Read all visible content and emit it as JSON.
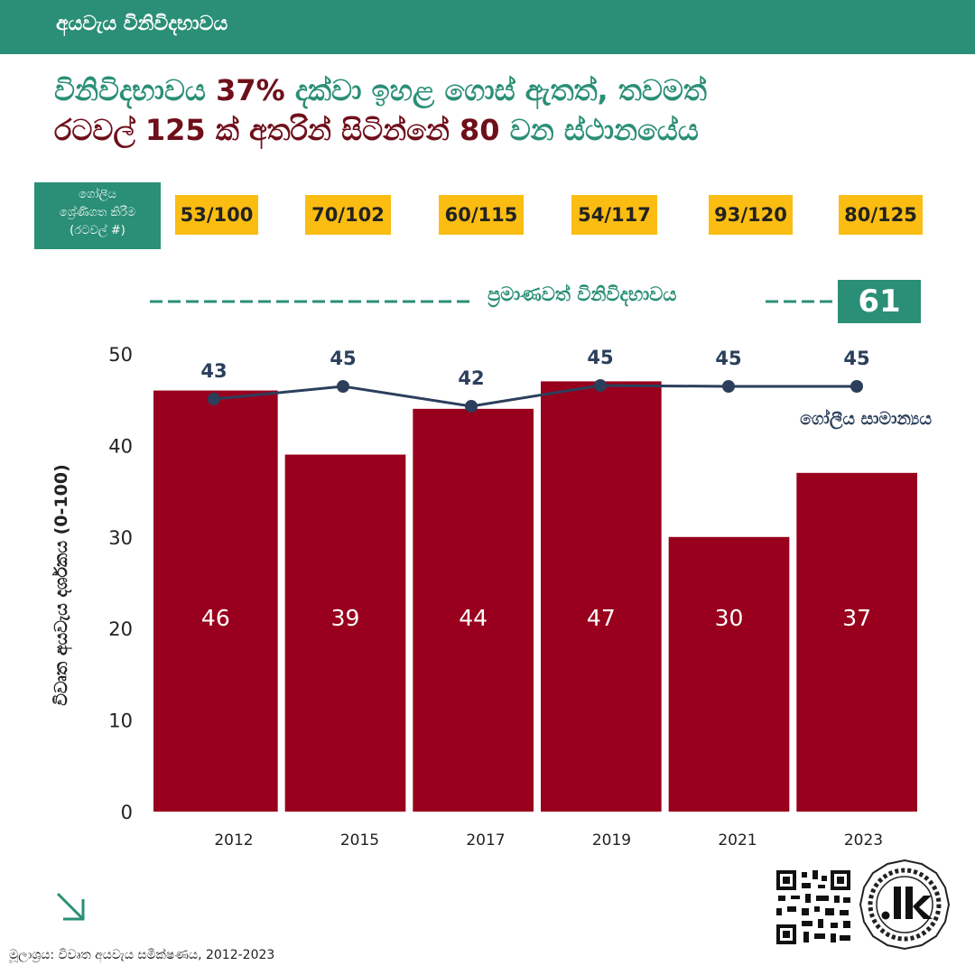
{
  "header": {
    "title": "අයවැය විනිවිදභාවය"
  },
  "headline": {
    "line1_a": "විනිවිදභාවය ",
    "line1_b": "37%",
    "line1_c": " දක්වා ඉහළ ගොස් ඇතත්, තවමත්",
    "line2_a": "රටවල් 125 ක් අතරින් සිටින්නේ 80",
    "line2_b": " වන ස්ථානයේය"
  },
  "ranking": {
    "label_line1": "ගෝලීය",
    "label_line2": "ශ්‍රේණිගත කිරීම",
    "label_line3": "(රටවල් #)",
    "items": [
      "53/100",
      "70/102",
      "60/115",
      "54/117",
      "93/120",
      "80/125"
    ]
  },
  "benchmark": {
    "label": "ප්‍රමාණවත් විනිවිදභාවය",
    "value": "61"
  },
  "chart_data": {
    "type": "bar",
    "categories": [
      "2012",
      "2015",
      "2017",
      "2019",
      "2021",
      "2023"
    ],
    "values": [
      46,
      39,
      44,
      47,
      30,
      37
    ],
    "ylabel": "විවෘත අයවැය දර්ශකය (0-100)",
    "ylim": [
      0,
      50
    ],
    "yticks": [
      0,
      10,
      20,
      30,
      40,
      50
    ],
    "line_series": {
      "name": "ගෝලීය සාමාන්‍යය",
      "values": [
        43,
        45,
        42,
        45,
        45,
        45
      ]
    },
    "benchmark_value": 61,
    "bar_color": "#98001d",
    "line_color": "#2b3f5c",
    "grid": false
  },
  "source": {
    "text": "මූලාශ්‍රය: විවෘත අයවැය සමීක්ෂණය, 2012-2023"
  },
  "colors": {
    "accent": "#2a8f76",
    "badge": "#fbbd12",
    "dark_red": "#6f0f1a"
  },
  "icons": {
    "arrow": "arrow-down-right-icon",
    "qr": "qr-code-icon",
    "logo": "lk-logo"
  }
}
